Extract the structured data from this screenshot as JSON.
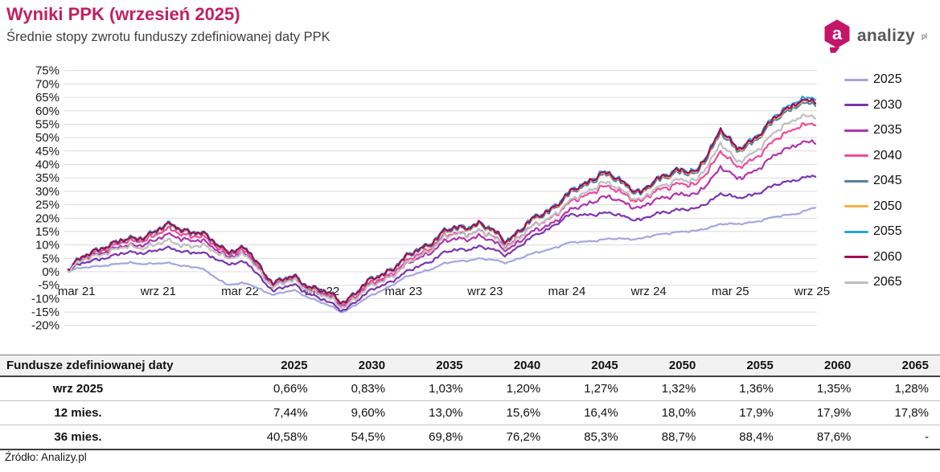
{
  "header": {
    "title": "Wyniki PPK (wrzesień 2025)",
    "subtitle": "Średnie stopy zwrotu funduszy zdefiniowanej daty PPK"
  },
  "logo": {
    "text": "analizy",
    "superscript": "pl",
    "badge_letter": "a",
    "badge_color": "#c4156a",
    "text_color": "#58595b"
  },
  "colors": {
    "accent": "#c21f63",
    "grid": "#d9d9d9",
    "axis_text": "#1a1a1a"
  },
  "chart_data": {
    "type": "line",
    "title": "Wyniki PPK (wrzesień 2025)",
    "subtitle": "Średnie stopy zwrotu funduszy zdefiniowanej daty PPK",
    "grid": true,
    "legend_position": "right",
    "ylim": [
      -20,
      75
    ],
    "ytick_step": 5,
    "ytick_suffix": "%",
    "x_labels": [
      "mar 21",
      "wrz 21",
      "mar 22",
      "wrz 22",
      "mar 23",
      "wrz 23",
      "mar 24",
      "wrz 24",
      "mar 25",
      "wrz 25"
    ],
    "x_label_interval_months": 6,
    "anchor_months_from_mar21": [
      -0.6,
      2,
      4,
      7,
      9,
      11,
      12.5,
      14.5,
      16,
      19.5,
      22,
      24,
      27,
      29.5,
      31.5,
      36,
      38.5,
      41.5,
      44,
      45.5,
      47.3,
      48.5,
      53,
      54.3
    ],
    "series": [
      {
        "name": "2025",
        "color": "#a5a5e3",
        "volatility": 0.25,
        "values": [
          0.5,
          2.5,
          3.2,
          3.0,
          1.5,
          -4.5,
          -4.5,
          -8.5,
          -7.0,
          -15.0,
          -8.0,
          -2.5,
          3.0,
          5.0,
          3.5,
          10.5,
          12.0,
          12.5,
          15.0,
          15.0,
          18.0,
          17.5,
          22.0,
          24.0
        ]
      },
      {
        "name": "2030",
        "color": "#7a36b1",
        "volatility": 0.5,
        "values": [
          1.0,
          5.5,
          7.0,
          8.5,
          7.0,
          3.5,
          3.0,
          -7.0,
          -5.0,
          -14.3,
          -6.0,
          -1.0,
          7.0,
          9.5,
          6.5,
          20.5,
          22.0,
          19.5,
          23.5,
          23.0,
          29.5,
          27.0,
          35.0,
          35.5
        ]
      },
      {
        "name": "2035",
        "color": "#b233ae",
        "volatility": 0.7,
        "values": [
          1.2,
          8.0,
          9.5,
          13.5,
          11.5,
          6.5,
          6.0,
          -4.8,
          -2.8,
          -12.3,
          -4.0,
          1.5,
          11.0,
          13.5,
          8.5,
          21.8,
          28.0,
          24.0,
          29.5,
          28.0,
          39.5,
          34.0,
          48.5,
          48.0
        ]
      },
      {
        "name": "2040",
        "color": "#f04b9c",
        "volatility": 0.8,
        "values": [
          1.5,
          9.0,
          11.0,
          15.5,
          13.0,
          7.5,
          7.0,
          -4.5,
          -2.5,
          -12.0,
          -3.5,
          2.5,
          13.0,
          15.5,
          10.0,
          24.5,
          32.0,
          26.5,
          33.5,
          31.5,
          45.5,
          38.0,
          55.0,
          54.5
        ]
      },
      {
        "name": "2045",
        "color": "#55809f",
        "volatility": 0.85,
        "values": [
          1.4,
          9.6,
          11.6,
          16.9,
          14.0,
          8.1,
          7.6,
          -4.3,
          -2.4,
          -11.3,
          -2.4,
          4.0,
          14.2,
          17.8,
          11.3,
          27.5,
          36.4,
          29.2,
          37.8,
          35.4,
          52.6,
          43.8,
          63.2,
          62.0
        ]
      },
      {
        "name": "2050",
        "color": "#fbb040",
        "volatility": 0.85,
        "values": [
          1.4,
          9.8,
          11.8,
          17.2,
          14.2,
          8.3,
          7.8,
          -4.2,
          -2.2,
          -11.2,
          -2.2,
          4.2,
          14.6,
          18.1,
          11.6,
          28.0,
          37.0,
          29.6,
          38.4,
          36.0,
          53.4,
          44.4,
          64.0,
          63.2
        ]
      },
      {
        "name": "2055",
        "color": "#27a6de",
        "volatility": 0.85,
        "values": [
          1.5,
          10.0,
          12.0,
          17.5,
          14.5,
          8.5,
          8.0,
          -4.0,
          -2.0,
          -11.0,
          -2.0,
          4.5,
          15.0,
          18.5,
          12.0,
          28.5,
          37.5,
          30.0,
          39.0,
          36.5,
          54.0,
          45.0,
          65.0,
          64.0
        ]
      },
      {
        "name": "2060",
        "color": "#a30c55",
        "volatility": 0.85,
        "values": [
          1.5,
          9.9,
          11.9,
          17.4,
          14.3,
          8.4,
          7.9,
          -4.1,
          -2.1,
          -11.1,
          -2.1,
          4.3,
          14.8,
          18.3,
          11.8,
          28.2,
          37.2,
          29.8,
          38.7,
          36.2,
          53.7,
          44.7,
          64.3,
          63.0
        ]
      },
      {
        "name": "2065",
        "color": "#bfbfbf",
        "volatility": 0.8,
        "values": [
          1.0,
          7.5,
          9.0,
          11.0,
          9.5,
          6.0,
          5.5,
          -5.5,
          -3.5,
          -13.0,
          -4.5,
          1.5,
          12.5,
          15.5,
          9.5,
          25.0,
          33.5,
          27.0,
          35.0,
          33.0,
          48.5,
          40.0,
          58.5,
          57.2
        ]
      }
    ]
  },
  "table": {
    "header": [
      "Fundusze zdefiniowanej daty",
      "2025",
      "2030",
      "2035",
      "2040",
      "2045",
      "2050",
      "2055",
      "2060",
      "2065"
    ],
    "rows": [
      {
        "label": "wrz 2025",
        "values": [
          "0,66%",
          "0,83%",
          "1,03%",
          "1,20%",
          "1,27%",
          "1,32%",
          "1,36%",
          "1,35%",
          "1,28%"
        ]
      },
      {
        "label": "12 mies.",
        "values": [
          "7,44%",
          "9,60%",
          "13,0%",
          "15,6%",
          "16,4%",
          "18,0%",
          "17,9%",
          "17,9%",
          "17,8%"
        ]
      },
      {
        "label": "36 mies.",
        "values": [
          "40,58%",
          "54,5%",
          "69,8%",
          "76,2%",
          "85,3%",
          "88,7%",
          "88,4%",
          "87,6%",
          "-"
        ]
      }
    ]
  },
  "footer": {
    "source": "Źródło: Analizy.pl"
  }
}
